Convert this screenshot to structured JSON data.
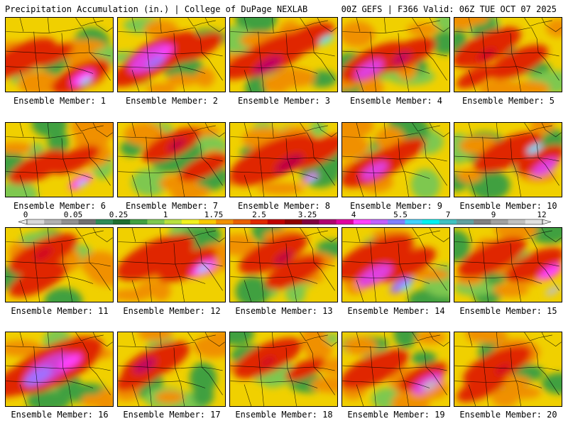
{
  "header": {
    "left": "Precipitation Accumulation (in.) | College of DuPage NEXLAB",
    "right": "00Z GEFS | F366 Valid: 06Z TUE OCT 07 2025"
  },
  "members": [
    {
      "label": "Ensemble Member: 1",
      "hot": [
        [
          0.15,
          0.55,
          0.35
        ],
        [
          0.7,
          0.8,
          0.3
        ],
        [
          0.45,
          0.5,
          0.2
        ]
      ],
      "peak": [
        [
          0.72,
          0.82,
          0.12,
          "#ff40ff"
        ],
        [
          0.75,
          0.86,
          0.06,
          "#60e0ff"
        ]
      ]
    },
    {
      "label": "Ensemble Member: 2",
      "hot": [
        [
          0.4,
          0.5,
          0.4
        ],
        [
          0.2,
          0.7,
          0.3
        ],
        [
          0.75,
          0.4,
          0.25
        ]
      ],
      "peak": [
        [
          0.3,
          0.55,
          0.22,
          "#e040e0"
        ],
        [
          0.35,
          0.6,
          0.1,
          "#a070ff"
        ],
        [
          0.45,
          0.45,
          0.08,
          "#ff40ff"
        ]
      ]
    },
    {
      "label": "Ensemble Member: 3",
      "hot": [
        [
          0.4,
          0.5,
          0.4
        ],
        [
          0.2,
          0.6,
          0.3
        ],
        [
          0.7,
          0.3,
          0.3
        ]
      ],
      "peak": [
        [
          0.35,
          0.65,
          0.15,
          "#c00060"
        ],
        [
          0.9,
          0.3,
          0.08,
          "#60e0e0"
        ]
      ]
    },
    {
      "label": "Ensemble Member: 4",
      "hot": [
        [
          0.3,
          0.6,
          0.35
        ],
        [
          0.6,
          0.5,
          0.3
        ]
      ],
      "peak": [
        [
          0.25,
          0.7,
          0.15,
          "#e040e0"
        ],
        [
          0.55,
          0.55,
          0.1,
          "#c00060"
        ]
      ]
    },
    {
      "label": "Ensemble Member: 5",
      "hot": [
        [
          0.3,
          0.4,
          0.35
        ],
        [
          0.6,
          0.6,
          0.3
        ],
        [
          0.2,
          0.8,
          0.2
        ]
      ],
      "peak": [
        [
          0.3,
          0.5,
          0.1,
          "#d00020"
        ]
      ]
    },
    {
      "label": "Ensemble Member: 6",
      "hot": [
        [
          0.3,
          0.6,
          0.3
        ],
        [
          0.65,
          0.5,
          0.25
        ]
      ],
      "peak": [
        [
          0.7,
          0.8,
          0.12,
          "#ff40ff"
        ],
        [
          0.72,
          0.82,
          0.05,
          "#60e0ff"
        ]
      ]
    },
    {
      "label": "Ensemble Member: 7",
      "hot": [
        [
          0.5,
          0.3,
          0.3
        ],
        [
          0.8,
          0.6,
          0.25
        ]
      ],
      "peak": [
        [
          0.55,
          0.3,
          0.1,
          "#c00040"
        ]
      ]
    },
    {
      "label": "Ensemble Member: 8",
      "hot": [
        [
          0.4,
          0.5,
          0.45
        ],
        [
          0.8,
          0.4,
          0.3
        ]
      ],
      "peak": [
        [
          0.55,
          0.55,
          0.15,
          "#c00040"
        ],
        [
          0.75,
          0.75,
          0.08,
          "#ff40ff"
        ],
        [
          0.76,
          0.77,
          0.04,
          "#60e0ff"
        ]
      ]
    },
    {
      "label": "Ensemble Member: 9",
      "hot": [
        [
          0.3,
          0.6,
          0.35
        ],
        [
          0.55,
          0.4,
          0.25
        ]
      ],
      "peak": [
        [
          0.3,
          0.65,
          0.14,
          "#e040e0"
        ]
      ]
    },
    {
      "label": "Ensemble Member: 10",
      "hot": [
        [
          0.5,
          0.4,
          0.35
        ],
        [
          0.8,
          0.5,
          0.25
        ]
      ],
      "peak": [
        [
          0.85,
          0.6,
          0.14,
          "#e040e0"
        ],
        [
          0.75,
          0.35,
          0.08,
          "#60e0ff"
        ]
      ]
    },
    {
      "label": "Ensemble Member: 11",
      "hot": [
        [
          0.35,
          0.35,
          0.35
        ],
        [
          0.3,
          0.7,
          0.3
        ]
      ],
      "peak": [
        [
          0.35,
          0.35,
          0.1,
          "#d00020"
        ]
      ]
    },
    {
      "label": "Ensemble Member: 12",
      "hot": [
        [
          0.35,
          0.4,
          0.4
        ],
        [
          0.65,
          0.5,
          0.3
        ]
      ],
      "peak": [
        [
          0.8,
          0.55,
          0.13,
          "#ff40ff"
        ],
        [
          0.8,
          0.55,
          0.06,
          "#60e0ff"
        ]
      ]
    },
    {
      "label": "Ensemble Member: 13",
      "hot": [
        [
          0.4,
          0.35,
          0.35
        ],
        [
          0.6,
          0.6,
          0.3
        ]
      ],
      "peak": [
        [
          0.5,
          0.4,
          0.1,
          "#c00040"
        ]
      ]
    },
    {
      "label": "Ensemble Member: 14",
      "hot": [
        [
          0.3,
          0.4,
          0.4
        ],
        [
          0.6,
          0.5,
          0.3
        ]
      ],
      "peak": [
        [
          0.3,
          0.65,
          0.18,
          "#e040e0"
        ],
        [
          0.55,
          0.78,
          0.12,
          "#a070ff"
        ],
        [
          0.6,
          0.8,
          0.06,
          "#60e0ff"
        ]
      ]
    },
    {
      "label": "Ensemble Member: 15",
      "hot": [
        [
          0.35,
          0.4,
          0.35
        ],
        [
          0.75,
          0.5,
          0.3
        ]
      ],
      "peak": [
        [
          0.9,
          0.6,
          0.12,
          "#ff40ff"
        ],
        [
          0.92,
          0.85,
          0.08,
          "#c0c0c0"
        ]
      ]
    },
    {
      "label": "Ensemble Member: 16",
      "hot": [
        [
          0.45,
          0.45,
          0.5
        ],
        [
          0.2,
          0.6,
          0.35
        ]
      ],
      "peak": [
        [
          0.4,
          0.5,
          0.25,
          "#d040d0"
        ],
        [
          0.3,
          0.6,
          0.15,
          "#a070ff"
        ],
        [
          0.6,
          0.4,
          0.12,
          "#ff40ff"
        ]
      ]
    },
    {
      "label": "Ensemble Member: 17",
      "hot": [
        [
          0.35,
          0.4,
          0.35
        ],
        [
          0.2,
          0.6,
          0.25
        ]
      ],
      "peak": [
        [
          0.25,
          0.45,
          0.12,
          "#c00060"
        ]
      ]
    },
    {
      "label": "Ensemble Member: 18",
      "hot": [
        [
          0.35,
          0.35,
          0.35
        ],
        [
          0.7,
          0.5,
          0.2
        ]
      ],
      "peak": [
        [
          0.35,
          0.4,
          0.08,
          "#d00020"
        ]
      ]
    },
    {
      "label": "Ensemble Member: 19",
      "hot": [
        [
          0.3,
          0.5,
          0.35
        ],
        [
          0.75,
          0.6,
          0.25
        ]
      ],
      "peak": [
        [
          0.8,
          0.7,
          0.16,
          "#e040e0"
        ],
        [
          0.82,
          0.72,
          0.08,
          "#c0c0c0"
        ]
      ]
    },
    {
      "label": "Ensemble Member: 20",
      "hot": [
        [
          0.4,
          0.45,
          0.35
        ],
        [
          0.25,
          0.75,
          0.25
        ]
      ],
      "peak": [
        [
          0.45,
          0.5,
          0.08,
          "#d00020"
        ]
      ]
    }
  ],
  "colorbar": {
    "labels": [
      "0",
      "0.05",
      "0.25",
      "1",
      "1.75",
      "2.5",
      "3.25",
      "4",
      "5.5",
      "7",
      "9",
      "12"
    ],
    "colors": [
      "#d8d8d8",
      "#b0b0b0",
      "#909090",
      "#707070",
      "#2e8b57",
      "#1e6e30",
      "#40a040",
      "#7ec850",
      "#b8e040",
      "#f0f020",
      "#f8c800",
      "#f09000",
      "#e86000",
      "#e02800",
      "#c00000",
      "#900000",
      "#800040",
      "#b00070",
      "#e000a0",
      "#ff40ff",
      "#c060ff",
      "#8080ff",
      "#40d0ff",
      "#00f0f0",
      "#40c0c0",
      "#60a0a0",
      "#808080",
      "#a0a0a0",
      "#c0c0c0",
      "#e0e0e0"
    ]
  }
}
